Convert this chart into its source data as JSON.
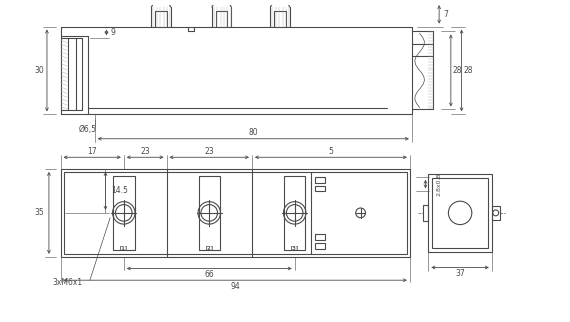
{
  "line_color": "#4a4a4a",
  "dim_color": "#4a4a4a",
  "bg_color": "#ffffff",
  "fig_width": 5.7,
  "fig_height": 3.22,
  "dpi": 100,
  "dims_top": {
    "label_30": "30",
    "label_9": "9",
    "label_7": "7",
    "label_28a": "28",
    "label_28b": "28",
    "label_d65": "Ø6,5",
    "label_80": "80"
  },
  "dims_bottom": {
    "label_17": "17",
    "label_23a": "23",
    "label_23b": "23",
    "label_5": "5",
    "label_35": "35",
    "label_145": "14.5",
    "label_28x08": "2.8x0.8",
    "label_3xM6x1": "3xM6x1",
    "label_66": "66",
    "label_94": "94",
    "label_37": "37"
  }
}
